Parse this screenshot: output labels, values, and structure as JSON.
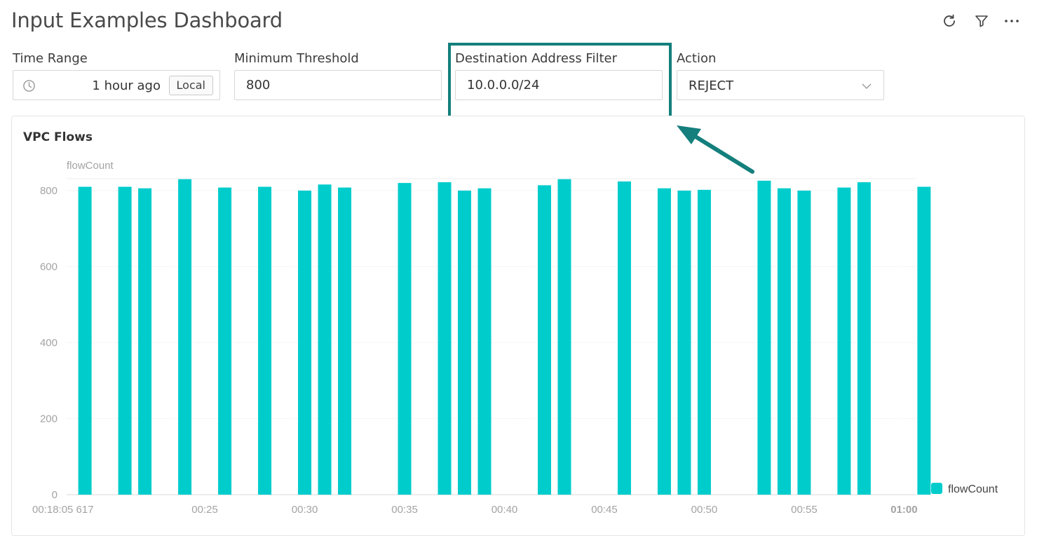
{
  "header": {
    "title": "Input Examples Dashboard",
    "icons": [
      "refresh-icon",
      "filter-icon",
      "more-icon"
    ]
  },
  "inputs": {
    "time_range": {
      "label": "Time Range",
      "value": "1 hour ago",
      "tz_button": "Local",
      "icon": "clock-icon"
    },
    "min_threshold": {
      "label": "Minimum Threshold",
      "value": "800"
    },
    "dest_filter": {
      "label": "Destination Address Filter",
      "value": "10.0.0.0/24"
    },
    "action": {
      "label": "Action",
      "value": "REJECT",
      "icon": "chevron-down-icon"
    }
  },
  "annotation": {
    "color": "#147f7c",
    "target": "Destination Address Filter"
  },
  "panel": {
    "title": "VPC Flows"
  },
  "chart_data": {
    "type": "bar",
    "title": "VPC Flows",
    "ylabel": "flowCount",
    "ylim": [
      0,
      800
    ],
    "yticks": [
      0,
      200,
      400,
      600,
      800
    ],
    "xlim": [
      "00:18:05",
      "01:00:35"
    ],
    "xticks": [
      "00:18:05 617",
      "00:25",
      "00:30",
      "00:35",
      "00:40",
      "00:45",
      "00:50",
      "00:55",
      "01:00"
    ],
    "color": "#00cccc",
    "legend": {
      "position": "right",
      "entries": [
        "flowCount"
      ]
    },
    "grid": true,
    "series": [
      {
        "name": "flowCount",
        "x": [
          "00:19",
          "00:21",
          "00:22",
          "00:24",
          "00:26",
          "00:28",
          "00:30",
          "00:31",
          "00:32",
          "00:35",
          "00:37",
          "00:38",
          "00:39",
          "00:42",
          "00:43",
          "00:46",
          "00:48",
          "00:49",
          "00:50",
          "00:53",
          "00:54",
          "00:55",
          "00:57",
          "00:58",
          "01:01"
        ],
        "values": [
          810,
          810,
          806,
          830,
          808,
          810,
          800,
          816,
          808,
          820,
          822,
          800,
          806,
          814,
          830,
          824,
          806,
          800,
          802,
          826,
          806,
          800,
          808,
          822,
          810
        ]
      }
    ]
  }
}
